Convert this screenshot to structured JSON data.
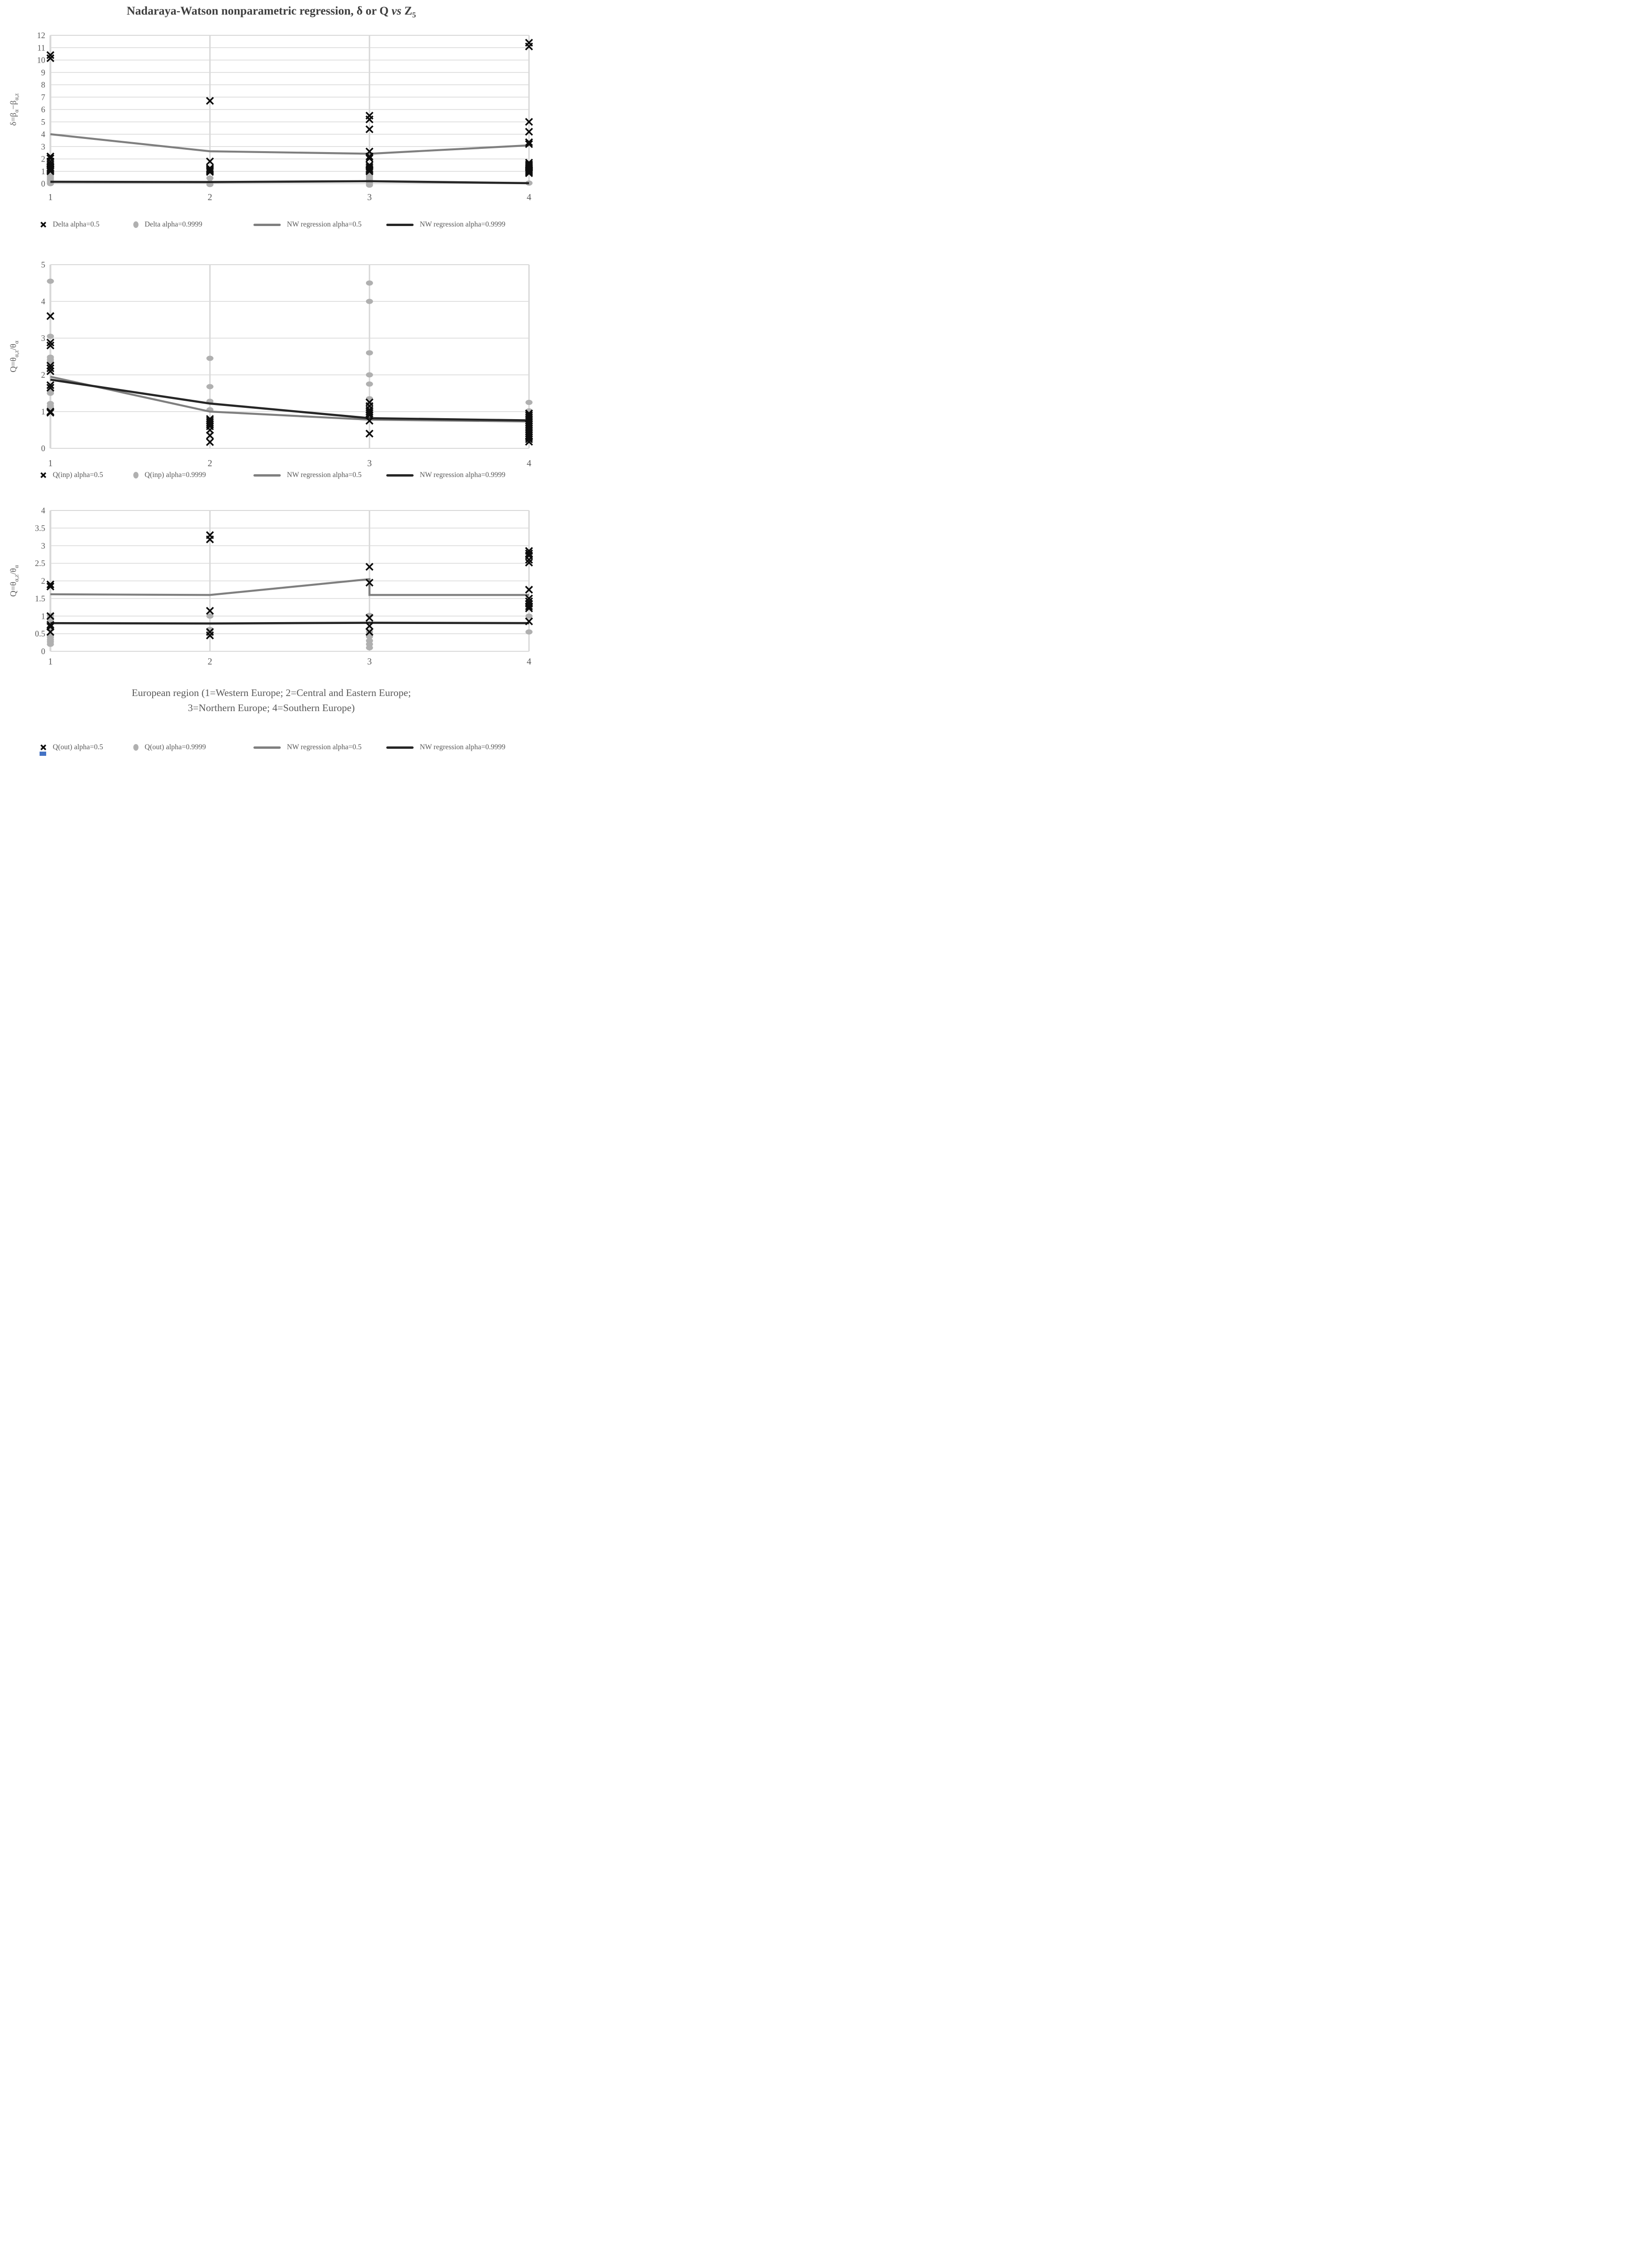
{
  "title": {
    "segments": [
      {
        "t": "Nadaraya-Watson nonparametric regression, δ or Q "
      },
      {
        "t": "vs",
        "italic": true
      },
      {
        "t": " Z"
      },
      {
        "t": "5",
        "sub": true
      }
    ]
  },
  "x_axis_title": {
    "line1": "European region (1=Western Europe; 2=Central and Eastern Europe;",
    "line2": "3=Northern Europe; 4=Southern Europe)"
  },
  "colors": {
    "grid": "#d9d9d9",
    "axis_text": "#595959",
    "title_text": "#3f3f3f",
    "x_marker": "#0d0d0d",
    "circle_marker": "#b0b0b0",
    "gray_line": "#7f7f7f",
    "black_line": "#262626",
    "artifact_blue": "#4472c4"
  },
  "chart_data": [
    {
      "type": "scatter",
      "name": "delta-vs-region",
      "ylabel_segments": [
        {
          "t": "δ=β"
        },
        {
          "t": "α",
          "sub": true
        },
        {
          "t": "−β"
        },
        {
          "t": "α,z",
          "sub": true
        }
      ],
      "ylim": [
        0,
        12
      ],
      "ytick_step": 1,
      "categories": [
        "1",
        "2",
        "3",
        "4"
      ],
      "grid": true,
      "legend_position": "bottom",
      "series": [
        {
          "name": "Delta alpha=0.5",
          "marker": "x",
          "points": [
            [
              1,
              10.4
            ],
            [
              1,
              10.15
            ],
            [
              1,
              2.2
            ],
            [
              1,
              2.05
            ],
            [
              1,
              1.8
            ],
            [
              1,
              1.6
            ],
            [
              1,
              1.45
            ],
            [
              1,
              1.3
            ],
            [
              1,
              1.2
            ],
            [
              1,
              1.1
            ],
            [
              1,
              1.0
            ],
            [
              2,
              6.7
            ],
            [
              2,
              1.8
            ],
            [
              2,
              1.25
            ],
            [
              2,
              1.15
            ],
            [
              2,
              1.05
            ],
            [
              2,
              0.95
            ],
            [
              3,
              5.5
            ],
            [
              3,
              5.2
            ],
            [
              3,
              4.4
            ],
            [
              3,
              2.6
            ],
            [
              3,
              2.2
            ],
            [
              3,
              2.05
            ],
            [
              3,
              1.5
            ],
            [
              3,
              1.35
            ],
            [
              3,
              1.2
            ],
            [
              3,
              1.1
            ],
            [
              3,
              1.0
            ],
            [
              4,
              11.4
            ],
            [
              4,
              11.1
            ],
            [
              4,
              5.0
            ],
            [
              4,
              4.2
            ],
            [
              4,
              3.35
            ],
            [
              4,
              3.2
            ],
            [
              4,
              1.7
            ],
            [
              4,
              1.55
            ],
            [
              4,
              1.45
            ],
            [
              4,
              1.35
            ],
            [
              4,
              1.25
            ],
            [
              4,
              1.15
            ],
            [
              4,
              1.05
            ],
            [
              4,
              0.95
            ],
            [
              4,
              0.85
            ]
          ]
        },
        {
          "name": "Delta alpha=0.9999",
          "marker": "circle",
          "points": [
            [
              1,
              0.62
            ],
            [
              1,
              0.48
            ],
            [
              1,
              0.35
            ],
            [
              1,
              0.22
            ],
            [
              1,
              0.1
            ],
            [
              1,
              0.0
            ],
            [
              2,
              0.45
            ],
            [
              2,
              0.08
            ],
            [
              2,
              -0.07
            ],
            [
              3,
              0.9
            ],
            [
              3,
              0.75
            ],
            [
              3,
              0.6
            ],
            [
              3,
              0.45
            ],
            [
              3,
              0.3
            ],
            [
              3,
              0.15
            ],
            [
              3,
              0.0
            ],
            [
              3,
              -0.12
            ],
            [
              4,
              0.05
            ]
          ]
        },
        {
          "name": "NW regression alpha=0.5",
          "type": "line",
          "color_key": "gray_line",
          "points": [
            [
              1,
              4.0
            ],
            [
              2,
              2.62
            ],
            [
              3,
              2.42
            ],
            [
              4,
              3.1
            ]
          ]
        },
        {
          "name": "NW regression alpha=0.9999",
          "type": "line",
          "color_key": "black_line",
          "points": [
            [
              1,
              0.15
            ],
            [
              2,
              0.13
            ],
            [
              3,
              0.2
            ],
            [
              4,
              0.04
            ]
          ]
        }
      ],
      "legend": [
        {
          "icon": "x-marker",
          "label": "Delta alpha=0.5"
        },
        {
          "icon": "circle-marker",
          "label": "Delta alpha=0.9999"
        },
        {
          "icon": "gray-line",
          "label": "NW regression alpha=0.5"
        },
        {
          "icon": "black-line",
          "label": "NW regression alpha=0.9999"
        }
      ]
    },
    {
      "type": "scatter",
      "name": "q-inp-vs-region",
      "ylabel_segments": [
        {
          "t": "Q=θ"
        },
        {
          "t": "α,z",
          "sub": true
        },
        {
          "t": "/θ"
        },
        {
          "t": "α",
          "sub": true
        }
      ],
      "ylim": [
        0,
        5
      ],
      "ytick_step": 1,
      "categories": [
        "1",
        "2",
        "3",
        "4"
      ],
      "grid": true,
      "legend_position": "bottom",
      "series": [
        {
          "name": "Q(inp) alpha=0.5",
          "marker": "x",
          "points": [
            [
              1,
              3.6
            ],
            [
              1,
              2.88
            ],
            [
              1,
              2.8
            ],
            [
              1,
              2.25
            ],
            [
              1,
              2.18
            ],
            [
              1,
              2.1
            ],
            [
              1,
              1.72
            ],
            [
              1,
              1.65
            ],
            [
              1,
              1.0
            ],
            [
              1,
              0.97
            ],
            [
              2,
              0.8
            ],
            [
              2,
              0.75
            ],
            [
              2,
              0.7
            ],
            [
              2,
              0.65
            ],
            [
              2,
              0.6
            ],
            [
              2,
              0.5
            ],
            [
              2,
              0.35
            ],
            [
              2,
              0.17
            ],
            [
              3,
              1.25
            ],
            [
              3,
              1.15
            ],
            [
              3,
              1.05
            ],
            [
              3,
              1.0
            ],
            [
              3,
              0.95
            ],
            [
              3,
              0.9
            ],
            [
              3,
              0.75
            ],
            [
              3,
              0.4
            ],
            [
              4,
              0.95
            ],
            [
              4,
              0.9
            ],
            [
              4,
              0.85
            ],
            [
              4,
              0.8
            ],
            [
              4,
              0.75
            ],
            [
              4,
              0.7
            ],
            [
              4,
              0.65
            ],
            [
              4,
              0.6
            ],
            [
              4,
              0.55
            ],
            [
              4,
              0.5
            ],
            [
              4,
              0.45
            ],
            [
              4,
              0.4
            ],
            [
              4,
              0.35
            ],
            [
              4,
              0.3
            ],
            [
              4,
              0.25
            ],
            [
              4,
              0.18
            ]
          ]
        },
        {
          "name": "Q(inp) alpha=0.9999",
          "marker": "circle",
          "points": [
            [
              1,
              4.55
            ],
            [
              1,
              3.05
            ],
            [
              1,
              2.48
            ],
            [
              1,
              2.42
            ],
            [
              1,
              2.36
            ],
            [
              1,
              1.55
            ],
            [
              1,
              1.5
            ],
            [
              1,
              1.22
            ],
            [
              1,
              1.15
            ],
            [
              1,
              1.1
            ],
            [
              1,
              1.05
            ],
            [
              2,
              2.45
            ],
            [
              2,
              1.68
            ],
            [
              2,
              1.28
            ],
            [
              2,
              1.05
            ],
            [
              3,
              4.5
            ],
            [
              3,
              4.0
            ],
            [
              3,
              2.6
            ],
            [
              3,
              2.0
            ],
            [
              3,
              1.75
            ],
            [
              3,
              1.35
            ],
            [
              3,
              1.2
            ],
            [
              3,
              1.12
            ],
            [
              4,
              1.25
            ],
            [
              4,
              1.02
            ]
          ]
        },
        {
          "name": "NW regression alpha=0.5",
          "type": "line",
          "color_key": "gray_line",
          "points": [
            [
              1,
              1.95
            ],
            [
              2,
              1.0
            ],
            [
              3,
              0.78
            ],
            [
              4,
              0.73
            ]
          ]
        },
        {
          "name": "NW regression alpha=0.9999",
          "type": "line",
          "color_key": "black_line",
          "points": [
            [
              1,
              1.87
            ],
            [
              2,
              1.22
            ],
            [
              3,
              0.82
            ],
            [
              4,
              0.76
            ]
          ]
        }
      ],
      "legend": [
        {
          "icon": "x-marker",
          "label": "Q(inp) alpha=0.5"
        },
        {
          "icon": "circle-marker",
          "label": "Q(inp) alpha=0.9999"
        },
        {
          "icon": "gray-line",
          "label": "NW regression alpha=0.5"
        },
        {
          "icon": "black-line",
          "label": "NW regression alpha=0.9999"
        }
      ]
    },
    {
      "type": "scatter",
      "name": "q-out-vs-region",
      "ylabel_segments": [
        {
          "t": "Q=θ"
        },
        {
          "t": "α,z",
          "sub": true
        },
        {
          "t": "/θ"
        },
        {
          "t": "α",
          "sub": true
        }
      ],
      "ylim": [
        0,
        4
      ],
      "ytick_step": 0.5,
      "categories": [
        "1",
        "2",
        "3",
        "4"
      ],
      "grid": true,
      "legend_position": "bottom",
      "series": [
        {
          "name": "Q(out) alpha=0.5",
          "marker": "x",
          "points": [
            [
              1,
              1.9
            ],
            [
              1,
              1.84
            ],
            [
              1,
              1.0
            ],
            [
              1,
              0.75
            ],
            [
              1,
              0.7
            ],
            [
              1,
              0.55
            ],
            [
              2,
              3.3
            ],
            [
              2,
              3.18
            ],
            [
              2,
              1.15
            ],
            [
              2,
              0.55
            ],
            [
              2,
              0.45
            ],
            [
              3,
              2.4
            ],
            [
              3,
              1.95
            ],
            [
              3,
              0.95
            ],
            [
              3,
              0.72
            ],
            [
              3,
              0.55
            ],
            [
              4,
              2.85
            ],
            [
              4,
              2.78
            ],
            [
              4,
              2.72
            ],
            [
              4,
              2.6
            ],
            [
              4,
              2.52
            ],
            [
              4,
              1.75
            ],
            [
              4,
              1.5
            ],
            [
              4,
              1.42
            ],
            [
              4,
              1.35
            ],
            [
              4,
              1.28
            ],
            [
              4,
              1.22
            ],
            [
              4,
              0.85
            ]
          ]
        },
        {
          "name": "Q(out) alpha=0.9999",
          "marker": "circle",
          "points": [
            [
              1,
              1.02
            ],
            [
              1,
              0.95
            ],
            [
              1,
              0.9
            ],
            [
              1,
              0.85
            ],
            [
              1,
              0.68
            ],
            [
              1,
              0.62
            ],
            [
              1,
              0.45
            ],
            [
              1,
              0.4
            ],
            [
              1,
              0.33
            ],
            [
              1,
              0.27
            ],
            [
              1,
              0.2
            ],
            [
              2,
              1.0
            ],
            [
              2,
              0.62
            ],
            [
              2,
              0.55
            ],
            [
              2,
              0.48
            ],
            [
              3,
              1.02
            ],
            [
              3,
              0.55
            ],
            [
              3,
              0.42
            ],
            [
              3,
              0.3
            ],
            [
              3,
              0.2
            ],
            [
              3,
              0.1
            ],
            [
              4,
              1.0
            ],
            [
              4,
              0.55
            ]
          ]
        },
        {
          "name": "NW regression alpha=0.5",
          "type": "line",
          "color_key": "gray_line",
          "points": [
            [
              1,
              1.62
            ],
            [
              2,
              1.6
            ],
            [
              3,
              2.05
            ],
            [
              3,
              1.6
            ],
            [
              4,
              1.6
            ]
          ]
        },
        {
          "name": "NW regression alpha=0.9999",
          "type": "line",
          "color_key": "black_line",
          "points": [
            [
              1,
              0.8
            ],
            [
              2,
              0.79
            ],
            [
              3,
              0.81
            ],
            [
              4,
              0.8
            ]
          ]
        }
      ],
      "legend": [
        {
          "icon": "x-marker",
          "label": "Q(out) alpha=0.5"
        },
        {
          "icon": "circle-marker",
          "label": "Q(out) alpha=0.9999"
        },
        {
          "icon": "gray-line",
          "label": "NW regression alpha=0.5"
        },
        {
          "icon": "black-line",
          "label": "NW regression alpha=0.9999"
        }
      ]
    }
  ]
}
